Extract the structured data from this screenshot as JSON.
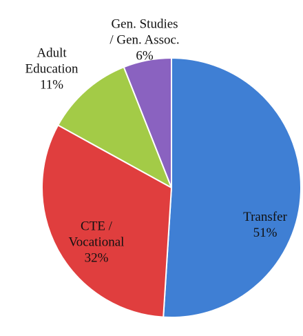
{
  "chart_data": {
    "type": "pie",
    "categories": [
      "Transfer",
      "CTE /\nVocational",
      "Adult\nEducation",
      "Gen. Studies\n/ Gen. Assoc."
    ],
    "values": [
      51,
      32,
      11,
      6
    ],
    "value_labels": [
      "51%",
      "32%",
      "11%",
      "6%"
    ],
    "colors": [
      "#3f7fd4",
      "#e03e3e",
      "#a3cb47",
      "#8a62c0"
    ]
  }
}
